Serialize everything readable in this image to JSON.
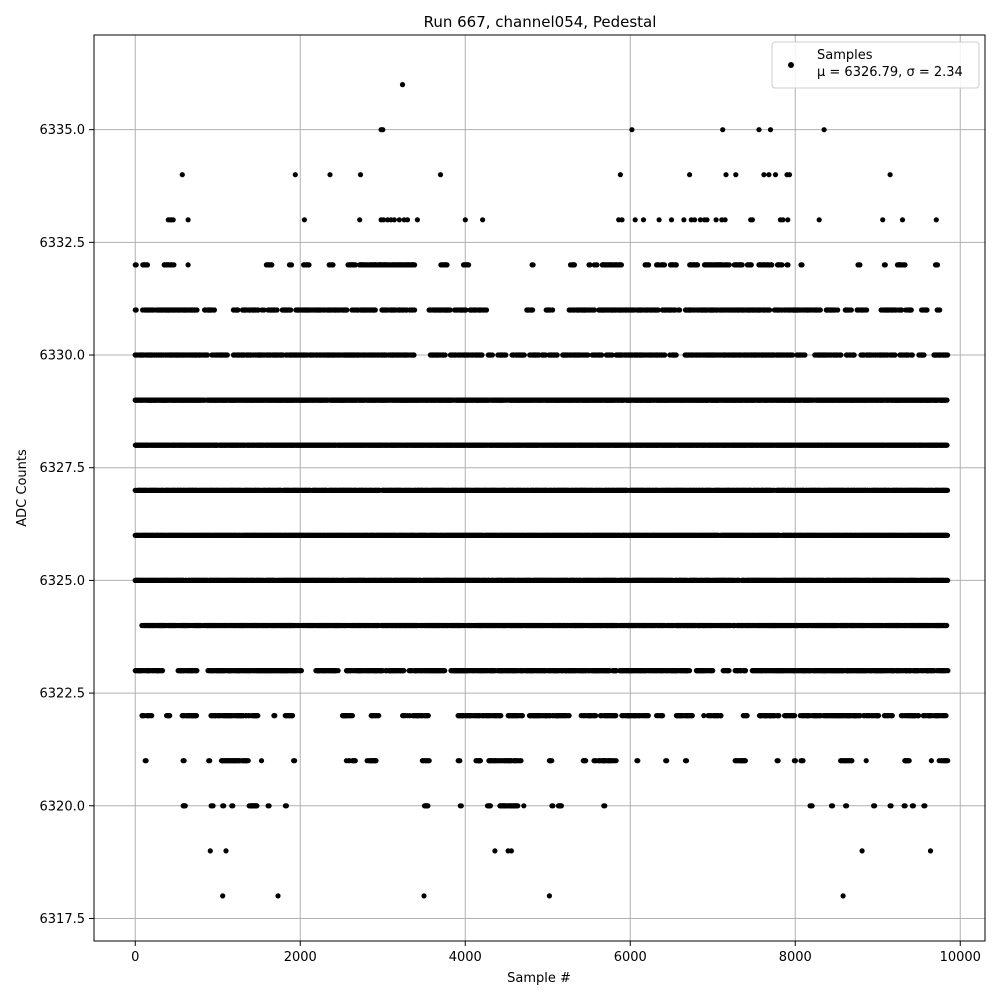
{
  "chart_data": {
    "type": "scatter",
    "title": "Run 667, channel054, Pedestal",
    "xlabel": "Sample #",
    "ylabel": "ADC Counts",
    "xlim": [
      -500,
      10300
    ],
    "ylim": [
      6317.0,
      6337.1
    ],
    "xticks": [
      0,
      2000,
      4000,
      6000,
      8000,
      10000
    ],
    "xtick_labels": [
      "0",
      "2000",
      "4000",
      "6000",
      "8000",
      "10000"
    ],
    "yticks": [
      6317.5,
      6320.0,
      6322.5,
      6325.0,
      6327.5,
      6330.0,
      6332.5,
      6335.0
    ],
    "ytick_labels": [
      "6317.5",
      "6320.0",
      "6322.5",
      "6325.0",
      "6327.5",
      "6330.0",
      "6332.5",
      "6335.0"
    ],
    "grid": true,
    "legend": {
      "placement": "top-right",
      "label": "Samples",
      "stats": "μ = 6326.79, σ = 2.34"
    },
    "marker_color": "#000000",
    "n_samples": 9850,
    "series": [
      {
        "name": "Samples",
        "levels": [
          {
            "y": 6336,
            "x": [
              3240
            ]
          },
          {
            "y": 6335,
            "x": [
              2980,
              3000,
              6020,
              7120,
              7560,
              7700,
              8350
            ]
          },
          {
            "y": 6334,
            "x": [
              570,
              1940,
              2360,
              2730,
              3700,
              5880,
              6720,
              7160,
              7280,
              7620,
              7680,
              7760,
              7900,
              7930,
              9150
            ]
          },
          {
            "y": 6333,
            "x": [
              400,
              420,
              440,
              460,
              640,
              2050,
              2720,
              2980,
              3010,
              3060,
              3100,
              3140,
              3200,
              3260,
              3300,
              3420,
              4000,
              4210,
              5860,
              5900,
              6060,
              6160,
              6350,
              6500,
              6650,
              6740,
              6780,
              6850,
              6900,
              6930,
              7040,
              7110,
              7150,
              7460,
              7480,
              7820,
              7850,
              7910,
              8290,
              9060,
              9300,
              9710
            ]
          }
        ],
        "bands": [
          {
            "y": 6332,
            "ranges": [
              [
                0,
                20
              ],
              [
                90,
                160
              ],
              [
                350,
                470
              ],
              [
                640,
                650
              ],
              [
                1590,
                1660
              ],
              [
                1870,
                1900
              ],
              [
                2040,
                2120
              ],
              [
                2350,
                2400
              ],
              [
                2580,
                2680
              ],
              [
                2720,
                3390
              ],
              [
                3700,
                3780
              ],
              [
                3980,
                4040
              ],
              [
                4810,
                4830
              ],
              [
                5270,
                5330
              ],
              [
                5500,
                5520
              ],
              [
                5560,
                5610
              ],
              [
                5660,
                5910
              ],
              [
                6180,
                6230
              ],
              [
                6320,
                6420
              ],
              [
                6480,
                6560
              ],
              [
                6720,
                6820
              ],
              [
                6900,
                7200
              ],
              [
                7260,
                7360
              ],
              [
                7420,
                7470
              ],
              [
                7560,
                7720
              ],
              [
                7780,
                7840
              ],
              [
                7900,
                7920
              ],
              [
                8070,
                8090
              ],
              [
                8760,
                8790
              ],
              [
                9080,
                9100
              ],
              [
                9240,
                9330
              ],
              [
                9700,
                9730
              ]
            ],
            "density": 0.75
          },
          {
            "y": 6331,
            "ranges": [
              [
                0,
                20
              ],
              [
                90,
                750
              ],
              [
                840,
                960
              ],
              [
                1190,
                1250
              ],
              [
                1300,
                1500
              ],
              [
                1530,
                1570
              ],
              [
                1610,
                1720
              ],
              [
                1770,
                1890
              ],
              [
                1940,
                2570
              ],
              [
                2610,
                2920
              ],
              [
                2990,
                3390
              ],
              [
                3560,
                3820
              ],
              [
                3870,
                4010
              ],
              [
                4060,
                4260
              ],
              [
                4740,
                4820
              ],
              [
                4980,
                5060
              ],
              [
                5260,
                5570
              ],
              [
                5620,
                6340
              ],
              [
                6390,
                6610
              ],
              [
                6670,
                7690
              ],
              [
                7730,
                8270
              ],
              [
                8280,
                8310
              ],
              [
                8370,
                8520
              ],
              [
                8600,
                8680
              ],
              [
                8750,
                8870
              ],
              [
                9040,
                9300
              ],
              [
                9340,
                9420
              ],
              [
                9520,
                9600
              ],
              [
                9720,
                9760
              ]
            ],
            "density": 0.6
          },
          {
            "y": 6330,
            "ranges": [
              [
                0,
                880
              ],
              [
                930,
                1120
              ],
              [
                1190,
                3380
              ],
              [
                3560,
                3760
              ],
              [
                3820,
                4210
              ],
              [
                4280,
                4330
              ],
              [
                4390,
                4500
              ],
              [
                4560,
                4720
              ],
              [
                4780,
                5120
              ],
              [
                5180,
                5490
              ],
              [
                5540,
                5660
              ],
              [
                5700,
                5780
              ],
              [
                5830,
                6420
              ],
              [
                6480,
                6560
              ],
              [
                6660,
                7970
              ],
              [
                8020,
                8120
              ],
              [
                8230,
                8560
              ],
              [
                8620,
                8720
              ],
              [
                8790,
                9210
              ],
              [
                9270,
                9420
              ],
              [
                9500,
                9560
              ],
              [
                9680,
                9850
              ]
            ],
            "density": 0.7
          },
          {
            "y": 6329,
            "ranges": [
              [
                0,
                9850
              ]
            ],
            "density": 0.8
          },
          {
            "y": 6328,
            "ranges": [
              [
                0,
                9850
              ]
            ],
            "density": 0.95
          },
          {
            "y": 6327,
            "ranges": [
              [
                0,
                9850
              ]
            ],
            "density": 0.85
          },
          {
            "y": 6326,
            "ranges": [
              [
                0,
                9850
              ]
            ],
            "density": 0.95
          },
          {
            "y": 6325,
            "ranges": [
              [
                0,
                9850
              ]
            ],
            "density": 0.85
          },
          {
            "y": 6324,
            "ranges": [
              [
                80,
                9840
              ]
            ],
            "density": 0.75
          },
          {
            "y": 6323,
            "ranges": [
              [
                0,
                330
              ],
              [
                520,
                750
              ],
              [
                880,
                2020
              ],
              [
                2190,
                2460
              ],
              [
                2560,
                3260
              ],
              [
                3320,
                3760
              ],
              [
                3820,
                6720
              ],
              [
                6800,
                7000
              ],
              [
                7120,
                7200
              ],
              [
                7260,
                7400
              ],
              [
                7480,
                9850
              ]
            ],
            "density": 0.7
          },
          {
            "y": 6322,
            "ranges": [
              [
                80,
                200
              ],
              [
                380,
                420
              ],
              [
                570,
                750
              ],
              [
                920,
                1310
              ],
              [
                1340,
                1500
              ],
              [
                1680,
                1700
              ],
              [
                1800,
                1910
              ],
              [
                2500,
                2640
              ],
              [
                2860,
                2950
              ],
              [
                3240,
                3560
              ],
              [
                3890,
                4440
              ],
              [
                4520,
                4700
              ],
              [
                4780,
                5280
              ],
              [
                5370,
                5580
              ],
              [
                5640,
                5830
              ],
              [
                5900,
                6220
              ],
              [
                6320,
                6420
              ],
              [
                6560,
                6760
              ],
              [
                6890,
                7100
              ],
              [
                7370,
                7420
              ],
              [
                7560,
                7800
              ],
              [
                7860,
                8000
              ],
              [
                8060,
                8790
              ],
              [
                8830,
                9010
              ],
              [
                9080,
                9180
              ],
              [
                9280,
                9500
              ],
              [
                9540,
                9850
              ]
            ],
            "density": 0.55
          },
          {
            "y": 6321,
            "ranges": [
              [
                120,
                140
              ],
              [
                580,
                600
              ],
              [
                890,
                910
              ],
              [
                1040,
                1370
              ],
              [
                1530,
                1540
              ],
              [
                1920,
                1940
              ],
              [
                2560,
                2680
              ],
              [
                2810,
                2920
              ],
              [
                3480,
                3580
              ],
              [
                3910,
                3950
              ],
              [
                4130,
                4200
              ],
              [
                4280,
                4700
              ],
              [
                5020,
                5060
              ],
              [
                5430,
                5470
              ],
              [
                5560,
                5830
              ],
              [
                6080,
                6100
              ],
              [
                6430,
                6450
              ],
              [
                6670,
                6690
              ],
              [
                7270,
                7400
              ],
              [
                7780,
                7800
              ],
              [
                7990,
                8010
              ],
              [
                8070,
                8100
              ],
              [
                8550,
                8690
              ],
              [
                8860,
                8870
              ],
              [
                9320,
                9380
              ],
              [
                9650,
                9660
              ],
              [
                9740,
                9850
              ]
            ],
            "density": 0.55
          },
          {
            "y": 6320,
            "ranges": [
              [
                570,
                610
              ],
              [
                920,
                950
              ],
              [
                1060,
                1080
              ],
              [
                1170,
                1190
              ],
              [
                1380,
                1480
              ],
              [
                1610,
                1630
              ],
              [
                1820,
                1840
              ],
              [
                3500,
                3560
              ],
              [
                3940,
                3960
              ],
              [
                4270,
                4310
              ],
              [
                4420,
                4640
              ],
              [
                4710,
                4720
              ],
              [
                5050,
                5070
              ],
              [
                5130,
                5170
              ],
              [
                5680,
                5700
              ],
              [
                8180,
                8210
              ],
              [
                8440,
                8460
              ],
              [
                8610,
                8630
              ],
              [
                8950,
                8970
              ],
              [
                9150,
                9170
              ],
              [
                9320,
                9340
              ],
              [
                9420,
                9440
              ],
              [
                9560,
                9580
              ]
            ],
            "density": 0.8
          }
        ],
        "sparse": [
          {
            "y": 6319,
            "x": [
              910,
              1100,
              4360,
              4520,
              4560,
              8810,
              9640
            ]
          },
          {
            "y": 6318,
            "x": [
              1060,
              1730,
              3500,
              5020,
              8580
            ]
          }
        ]
      }
    ]
  }
}
